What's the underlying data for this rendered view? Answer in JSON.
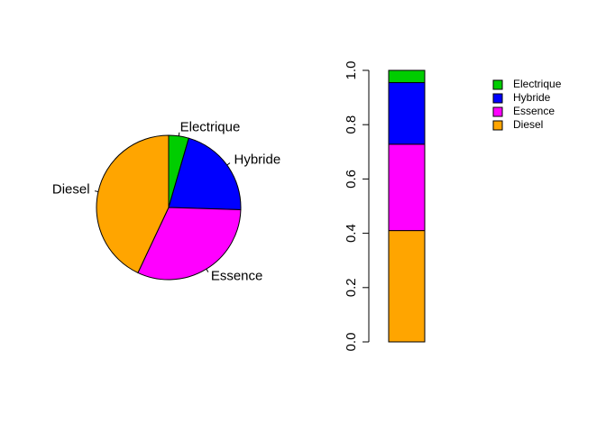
{
  "chart_data": [
    {
      "type": "pie",
      "title": "",
      "slices": [
        {
          "label": "Electrique",
          "value": 0.045,
          "color": "#00CD00"
        },
        {
          "label": "Hybride",
          "value": 0.21,
          "color": "#0000FF"
        },
        {
          "label": "Essence",
          "value": 0.315,
          "color": "#FF00FF"
        },
        {
          "label": "Diesel",
          "value": 0.43,
          "color": "#FFA500"
        }
      ]
    },
    {
      "type": "bar",
      "stacked": true,
      "title": "",
      "xlabel": "",
      "ylabel": "",
      "ylim": [
        0,
        1
      ],
      "yticks": [
        "0.0",
        "0.2",
        "0.4",
        "0.6",
        "0.8",
        "1.0"
      ],
      "series": [
        {
          "name": "Diesel",
          "value": 0.41,
          "color": "#FFA500"
        },
        {
          "name": "Essence",
          "value": 0.318,
          "color": "#FF00FF"
        },
        {
          "name": "Hybride",
          "value": 0.227,
          "color": "#0000FF"
        },
        {
          "name": "Electrique",
          "value": 0.045,
          "color": "#00CD00"
        }
      ],
      "legend": {
        "position": "top-right",
        "entries": [
          {
            "label": "Electrique",
            "color": "#00CD00"
          },
          {
            "label": "Hybride",
            "color": "#0000FF"
          },
          {
            "label": "Essence",
            "color": "#FF00FF"
          },
          {
            "label": "Diesel",
            "color": "#FFA500"
          }
        ]
      }
    }
  ]
}
